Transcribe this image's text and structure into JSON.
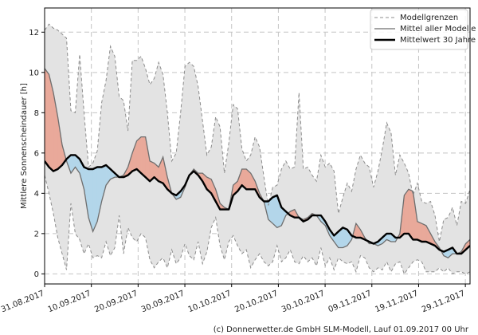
{
  "chart_data": {
    "type": "line",
    "ylabel": "Mittlere Sonnenscheindauer [h]",
    "xlabel": "",
    "ylim": [
      -0.5,
      13.2
    ],
    "yticks": [
      0,
      2,
      4,
      6,
      8,
      10,
      12
    ],
    "x_day_range": [
      0,
      91
    ],
    "xticks": [
      {
        "day": 0,
        "label": "31.08.2017"
      },
      {
        "day": 10,
        "label": "10.09.2017"
      },
      {
        "day": 20,
        "label": "20.09.2017"
      },
      {
        "day": 30,
        "label": "30.09.2017"
      },
      {
        "day": 40,
        "label": "10.10.2017"
      },
      {
        "day": 50,
        "label": "20.10.2017"
      },
      {
        "day": 60,
        "label": "30.10.2017"
      },
      {
        "day": 70,
        "label": "09.11.2017"
      },
      {
        "day": 80,
        "label": "19.11.2017"
      },
      {
        "day": 90,
        "label": "29.11.2017"
      }
    ],
    "grid": true,
    "legend": {
      "position": "top-right",
      "entries": [
        {
          "label": "Modellgrenzen",
          "style": "dashed-gray"
        },
        {
          "label": "Mittel aller Modelle",
          "style": "solid-gray"
        },
        {
          "label": "Mittelwert 30 Jahre",
          "style": "thick-black"
        }
      ]
    },
    "colors": {
      "band": "#e3e3e3",
      "band_edge": "#8c8c8c",
      "models_mean": "#6e6e6e",
      "climate": "#000000",
      "above": "#e9a99a",
      "below": "#b3d6ea",
      "grid": "#c4c4c4"
    },
    "series": [
      {
        "name": "Modellgrenzen (oben)",
        "values": [
          12.1,
          12.4,
          12.2,
          12.1,
          11.9,
          11.7,
          8.1,
          8.0,
          10.9,
          8.0,
          5.3,
          5.5,
          6.1,
          8.5,
          9.6,
          11.3,
          10.8,
          8.8,
          8.6,
          7.1,
          10.6,
          10.6,
          10.8,
          10.2,
          9.4,
          9.7,
          10.5,
          9.9,
          8.0,
          5.6,
          6.0,
          8.0,
          10.3,
          10.5,
          10.3,
          9.3,
          7.6,
          5.9,
          6.3,
          7.8,
          7.3,
          5.0,
          6.5,
          8.4,
          8.2,
          6.2,
          5.6,
          5.9,
          6.8,
          6.3,
          4.8,
          3.4,
          4.3,
          4.4,
          5.2,
          5.6,
          5.2,
          5.3,
          9.0,
          5.2,
          5.3,
          4.9,
          4.6,
          5.9,
          5.3,
          5.5,
          5.1,
          3.0,
          3.8,
          4.5,
          4.1,
          5.2,
          5.9,
          5.5,
          5.3,
          4.3,
          5.1,
          6.2,
          7.5,
          7.0,
          4.9,
          5.9,
          5.5,
          5.0,
          3.9,
          4.5,
          3.6,
          3.5,
          3.6,
          2.9,
          1.6,
          2.7,
          2.8,
          3.3,
          2.4,
          3.6,
          3.5,
          4.2
        ]
      },
      {
        "name": "Modellgrenzen (unten)",
        "values": [
          4.9,
          4.0,
          3.0,
          1.8,
          1.0,
          0.2,
          3.5,
          2.0,
          1.7,
          1.0,
          1.5,
          0.8,
          0.9,
          0.8,
          1.6,
          0.9,
          1.3,
          2.9,
          1.0,
          2.3,
          1.8,
          1.6,
          2.0,
          1.8,
          0.7,
          0.3,
          0.6,
          0.8,
          0.3,
          1.2,
          0.5,
          0.8,
          1.5,
          0.9,
          0.7,
          1.6,
          0.5,
          1.1,
          2.3,
          2.8,
          1.4,
          0.7,
          1.6,
          1.9,
          1.4,
          1.0,
          1.2,
          0.3,
          0.7,
          1.0,
          0.6,
          0.4,
          0.6,
          1.4,
          0.6,
          0.8,
          1.2,
          0.6,
          0.5,
          0.9,
          0.6,
          0.8,
          0.4,
          1.3,
          0.4,
          0.8,
          0.2,
          0.8,
          0.6,
          0.5,
          0.6,
          0.1,
          0.9,
          0.8,
          0.3,
          0.1,
          0.3,
          0.2,
          0.6,
          0.1,
          0.5,
          0.6,
          0.0,
          0.3,
          0.6,
          0.7,
          0.6,
          0.1,
          0.1,
          0.1,
          0.3,
          0.1,
          0.3,
          0.0,
          0.1,
          0.1,
          0.0,
          0.1
        ]
      },
      {
        "name": "Mittel aller Modelle",
        "values": [
          10.2,
          9.9,
          9.0,
          7.8,
          6.4,
          5.6,
          5.0,
          5.3,
          5.0,
          4.2,
          2.8,
          2.1,
          2.6,
          3.6,
          4.4,
          4.7,
          4.8,
          4.8,
          4.9,
          5.3,
          6.0,
          6.6,
          6.8,
          6.8,
          5.6,
          5.5,
          5.3,
          5.8,
          4.8,
          4.0,
          3.7,
          3.8,
          4.3,
          4.9,
          5.2,
          5.0,
          5.0,
          4.8,
          4.7,
          4.2,
          3.5,
          3.3,
          3.2,
          4.4,
          4.6,
          5.2,
          5.2,
          5.0,
          4.6,
          4.0,
          3.6,
          2.7,
          2.5,
          2.3,
          2.4,
          2.9,
          3.1,
          3.2,
          2.8,
          2.7,
          2.8,
          3.0,
          2.9,
          2.6,
          2.4,
          1.9,
          1.6,
          1.3,
          1.3,
          1.4,
          1.7,
          2.5,
          2.2,
          1.8,
          1.5,
          1.5,
          1.4,
          1.5,
          1.7,
          1.6,
          1.6,
          2.0,
          3.9,
          4.2,
          4.1,
          2.6,
          2.5,
          2.4,
          2.0,
          1.6,
          1.3,
          0.9,
          0.8,
          1.0,
          1.0,
          1.1,
          1.5,
          1.7
        ]
      },
      {
        "name": "Mittelwert 30 Jahre",
        "values": [
          5.6,
          5.3,
          5.1,
          5.2,
          5.4,
          5.7,
          5.9,
          5.9,
          5.7,
          5.3,
          5.2,
          5.2,
          5.3,
          5.3,
          5.4,
          5.2,
          5.0,
          4.8,
          4.8,
          4.9,
          5.1,
          5.2,
          5.0,
          4.8,
          4.6,
          4.8,
          4.6,
          4.5,
          4.2,
          4.0,
          3.9,
          4.1,
          4.4,
          4.9,
          5.1,
          4.9,
          4.6,
          4.2,
          4.0,
          3.6,
          3.2,
          3.2,
          3.2,
          3.9,
          4.1,
          4.4,
          4.2,
          4.2,
          4.2,
          3.8,
          3.6,
          3.6,
          3.8,
          3.9,
          3.3,
          3.1,
          2.9,
          2.8,
          2.8,
          2.6,
          2.7,
          2.9,
          2.9,
          2.9,
          2.6,
          2.2,
          1.9,
          2.1,
          2.3,
          2.2,
          1.9,
          1.8,
          1.8,
          1.7,
          1.6,
          1.5,
          1.6,
          1.8,
          2.0,
          2.0,
          1.8,
          1.8,
          2.0,
          2.0,
          1.7,
          1.7,
          1.6,
          1.6,
          1.5,
          1.4,
          1.2,
          1.1,
          1.2,
          1.3,
          1.0,
          1.0,
          1.2,
          1.4
        ]
      }
    ],
    "credit": "(c) Donnerwetter.de GmbH SLM-Modell, Lauf 01.09.2017 00 Uhr"
  }
}
